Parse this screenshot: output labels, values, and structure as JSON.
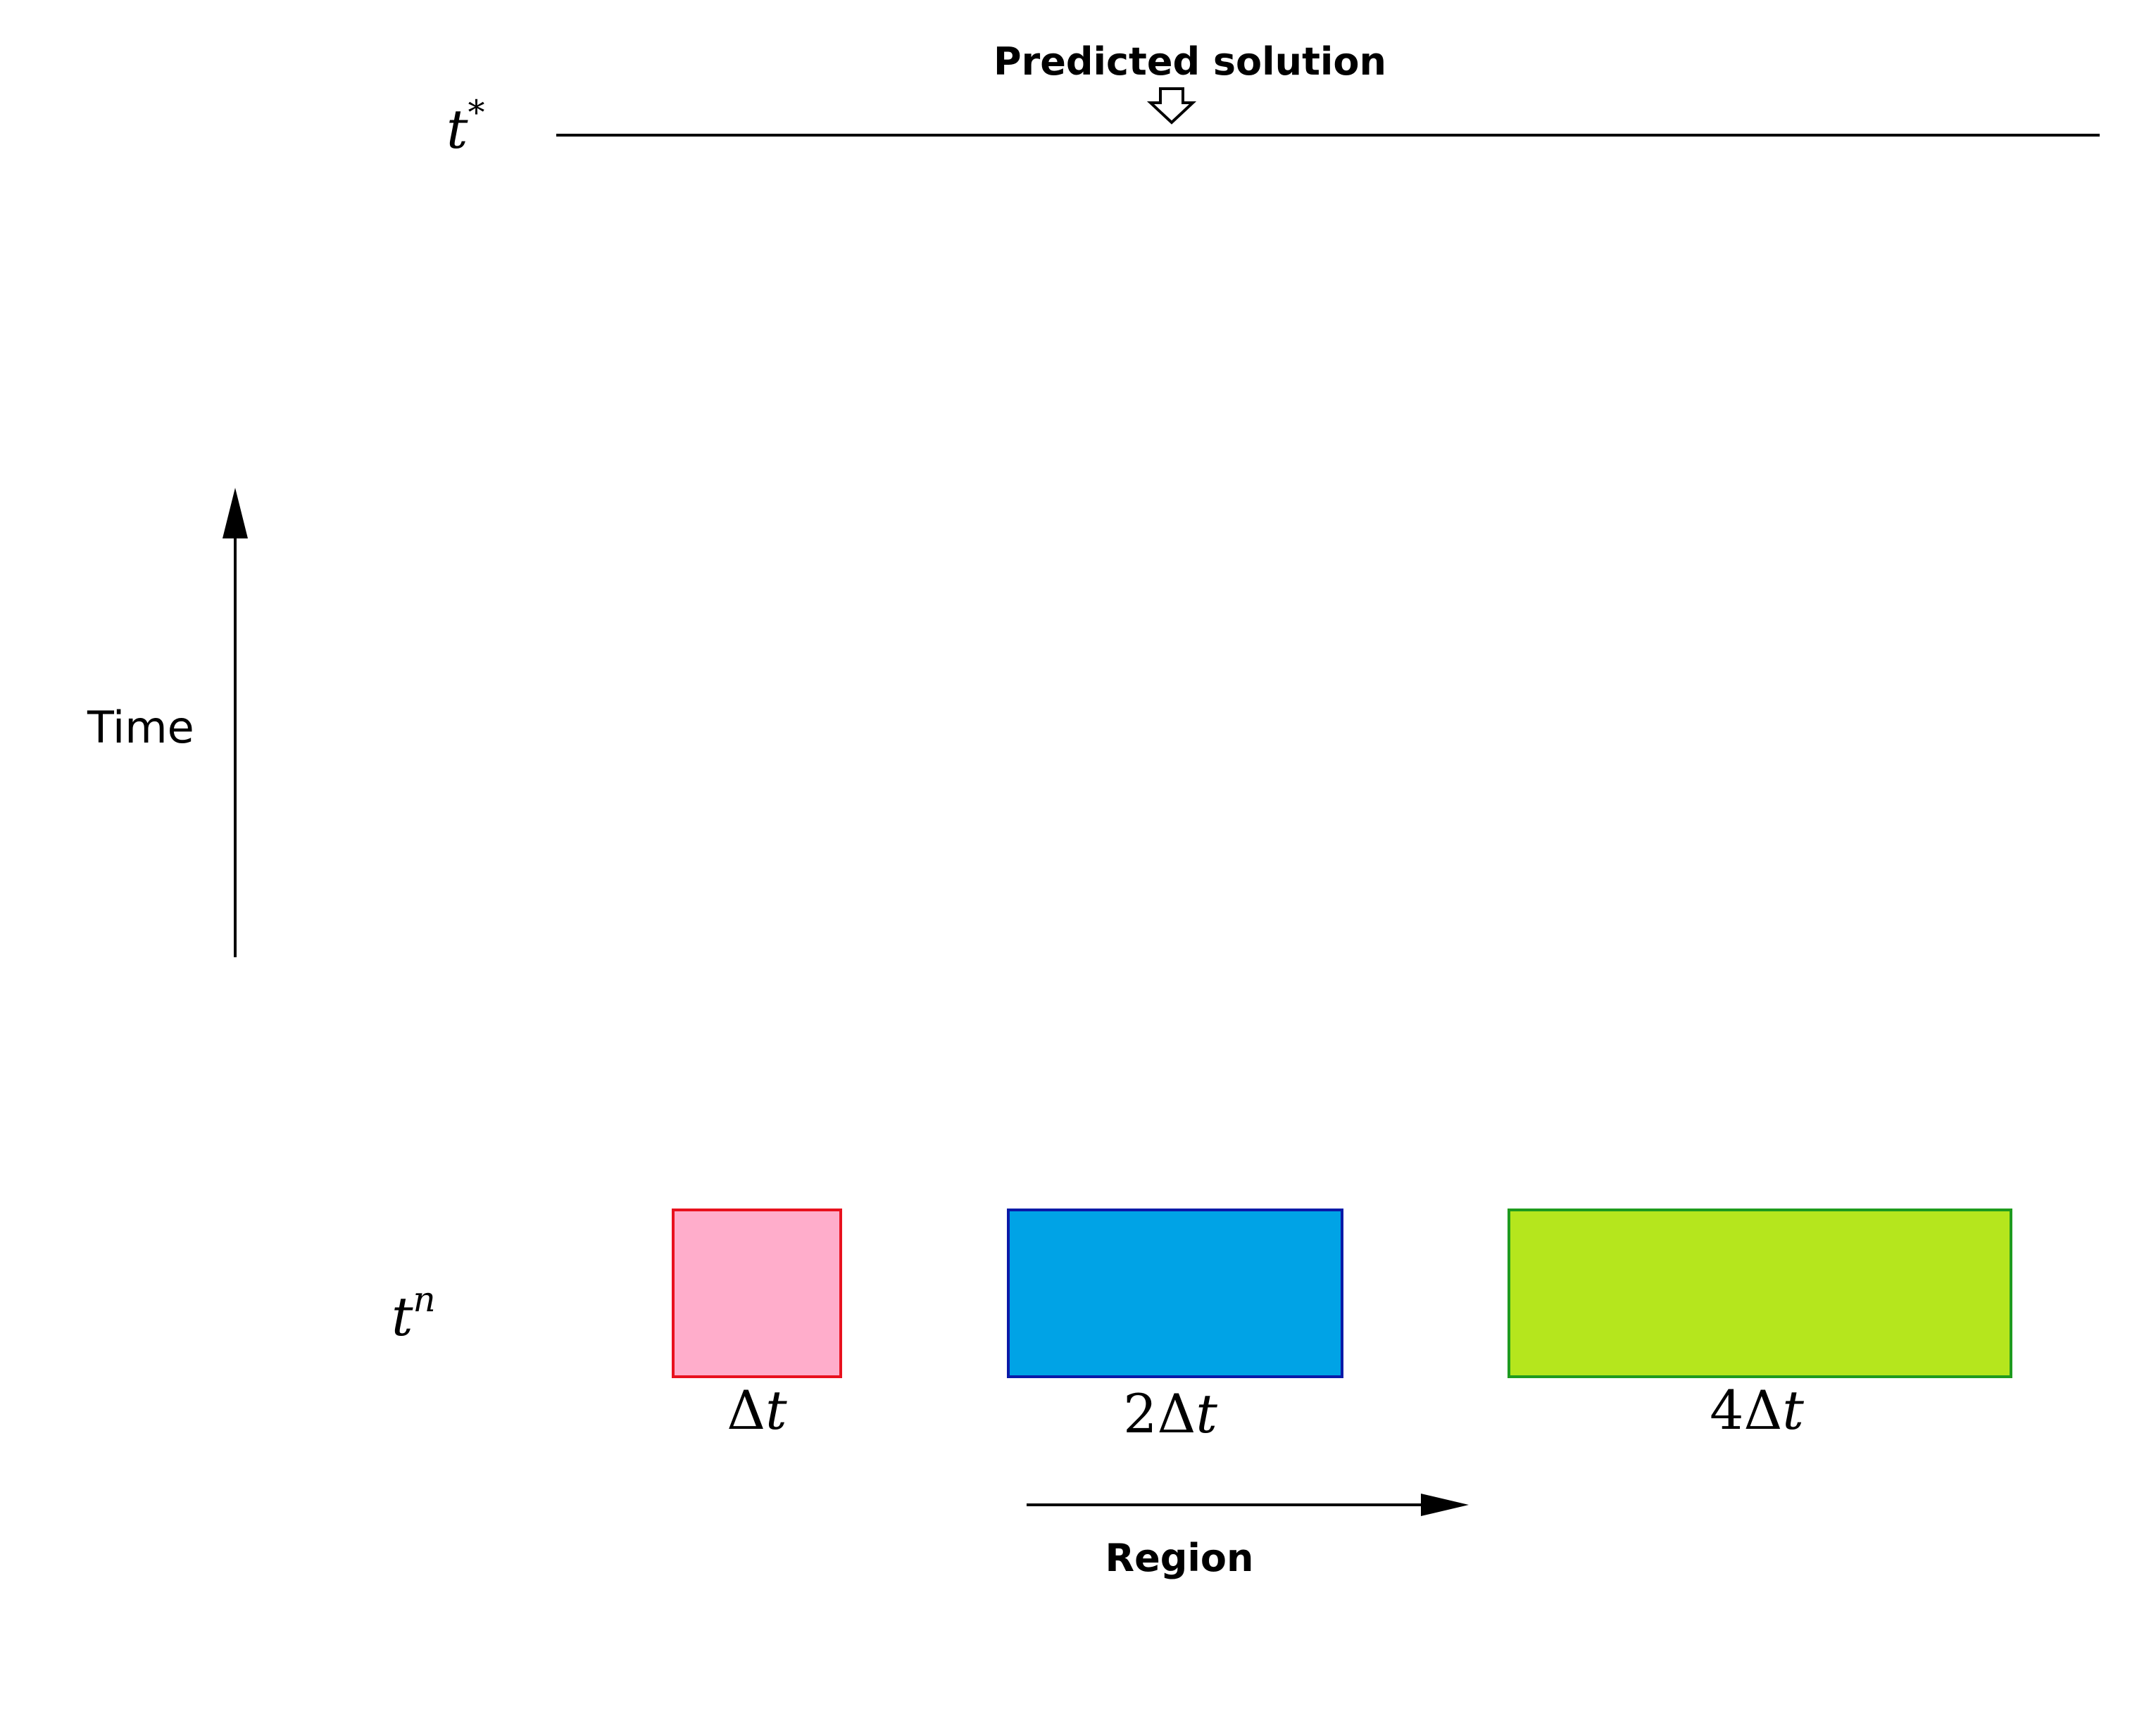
{
  "top_label": "Predicted solution",
  "time_levels": {
    "upper": {
      "base": "t",
      "sup": "*"
    },
    "lower": {
      "base": "t",
      "sup": "n"
    }
  },
  "time_axis_label": "Time",
  "region_axis_label": "Region",
  "blocks": [
    {
      "id": "dt1",
      "coef": "",
      "delta": "Δ",
      "var": "t",
      "fill": "#ffadcb",
      "stroke": "#e8111e"
    },
    {
      "id": "dt2",
      "coef": "2",
      "delta": "Δ",
      "var": "t",
      "fill": "#00a3e6",
      "stroke": "#0a1aa8"
    },
    {
      "id": "dt4",
      "coef": "4",
      "delta": "Δ",
      "var": "t",
      "fill": "#b5e61d",
      "stroke": "#1e9b1e"
    }
  ]
}
